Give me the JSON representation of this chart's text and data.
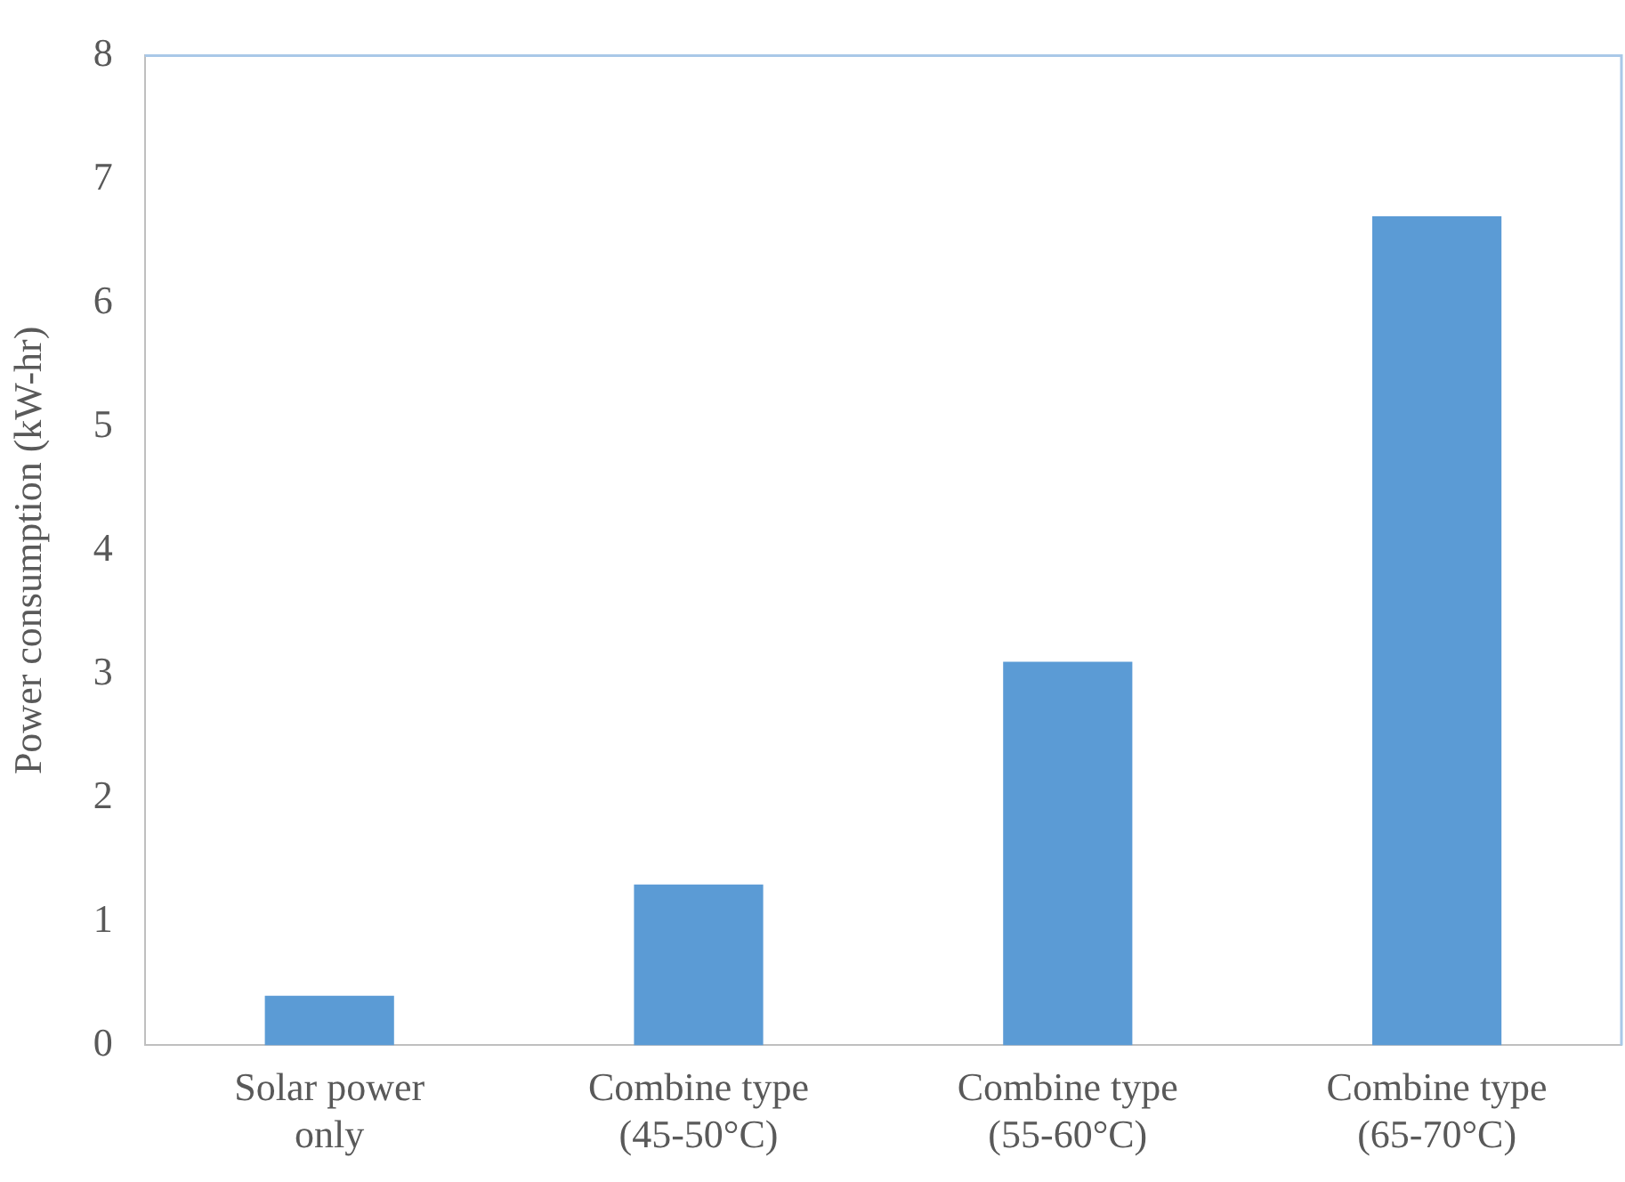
{
  "chart_data": {
    "type": "bar",
    "ylabel": "Power consumption (kW-hr)",
    "categories": [
      "Solar power only",
      "Combine type (45-50°C)",
      "Combine type (55-60°C)",
      "Combine type (65-70°C)"
    ],
    "values": [
      0.4,
      1.3,
      3.1,
      6.7
    ],
    "color": "#5b9bd5",
    "ylim": [
      0,
      8
    ],
    "yticks": [
      0,
      1,
      2,
      3,
      4,
      5,
      6,
      7,
      8
    ],
    "grid": false,
    "legend": false
  }
}
